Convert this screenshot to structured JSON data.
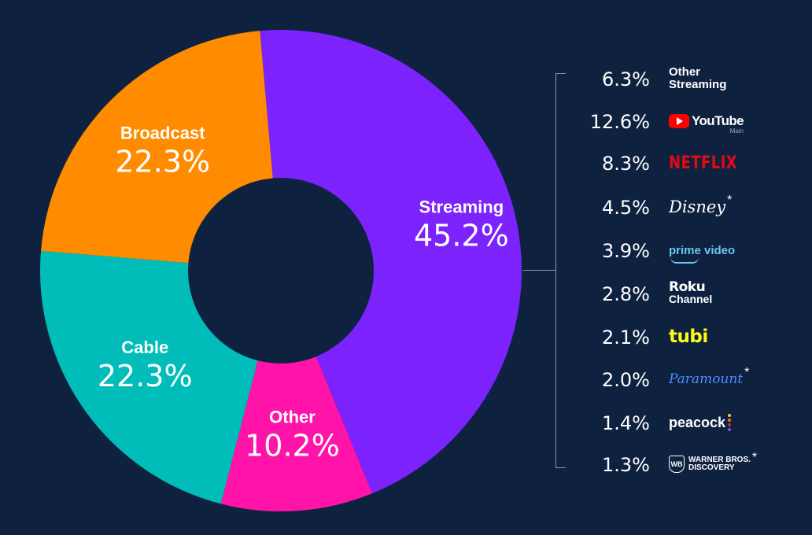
{
  "chart_data": {
    "type": "pie",
    "style": "donut",
    "categories": [
      "Streaming",
      "Other",
      "Cable",
      "Broadcast"
    ],
    "values": [
      45.2,
      10.2,
      22.3,
      22.3
    ],
    "labels": [
      "45.2%",
      "10.2%",
      "22.3%",
      "22.3%"
    ],
    "colors": [
      "#7b22fd",
      "#ff13a8",
      "#00bdb9",
      "#ff8b00"
    ],
    "breakdown": {
      "parent": "Streaming",
      "items": [
        {
          "pct": "6.3%",
          "name": "Other Streaming",
          "line1": "Other",
          "line2": "Streaming"
        },
        {
          "pct": "12.6%",
          "name": "YouTube",
          "sub": "Main"
        },
        {
          "pct": "8.3%",
          "name": "NETFLIX"
        },
        {
          "pct": "4.5%",
          "name": "Disney",
          "mark": "*"
        },
        {
          "pct": "3.9%",
          "name": "prime video"
        },
        {
          "pct": "2.8%",
          "name": "Roku Channel",
          "line1": "Roku",
          "line2": "Channel"
        },
        {
          "pct": "2.1%",
          "name": "tubi"
        },
        {
          "pct": "2.0%",
          "name": "Paramount",
          "mark": "*"
        },
        {
          "pct": "1.4%",
          "name": "peacock"
        },
        {
          "pct": "1.3%",
          "name": "WARNER BROS. DISCOVERY",
          "line1": "WARNER BROS.",
          "line2": "DISCOVERY",
          "mark": "*"
        }
      ]
    }
  },
  "colors": {
    "background": "#0e2240"
  }
}
